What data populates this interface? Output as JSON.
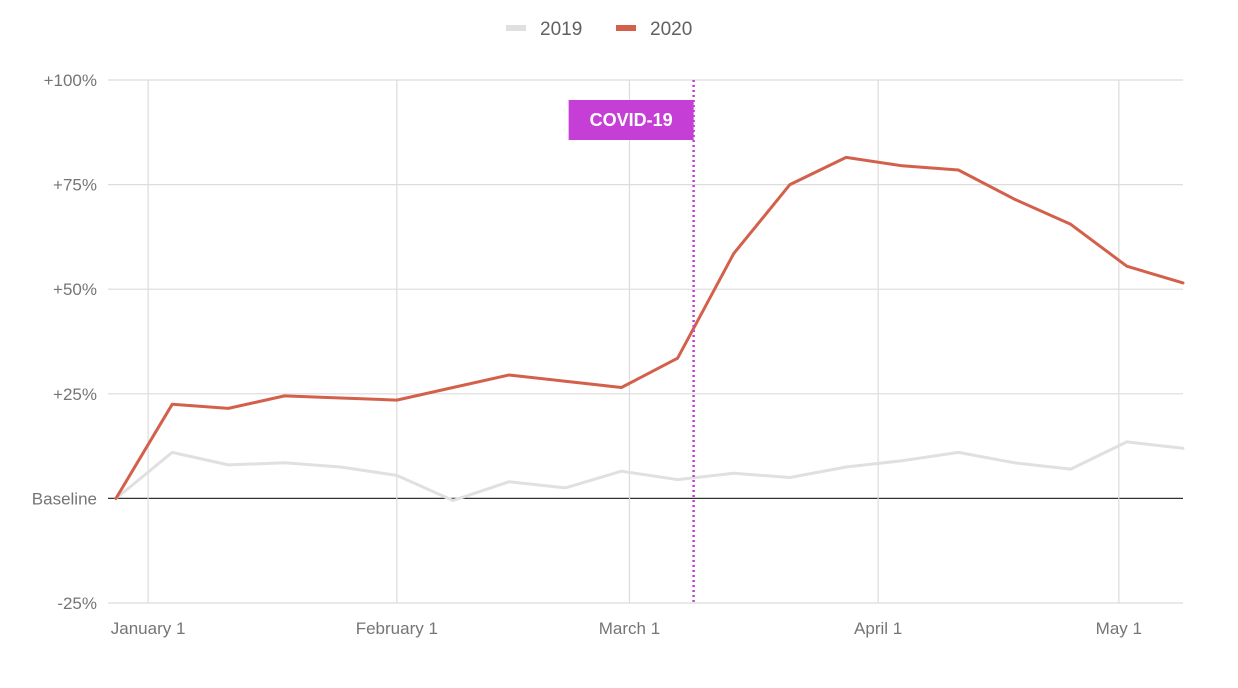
{
  "chart_data": {
    "type": "line",
    "title": "",
    "xlabel": "",
    "ylabel": "",
    "x_tick_labels": [
      "January 1",
      "February 1",
      "March 1",
      "April 1",
      "May 1"
    ],
    "y_tick_labels": [
      "+100%",
      "+75%",
      "+50%",
      "+25%",
      "Baseline",
      "-25%"
    ],
    "y_tick_values": [
      100,
      75,
      50,
      25,
      0,
      -25
    ],
    "ylim": [
      -25,
      100
    ],
    "xlim": [
      "2019-12-27",
      "2020-05-09"
    ],
    "grid": true,
    "legend_position": "top-center",
    "x": [
      "2019-12-28",
      "2020-01-04",
      "2020-01-11",
      "2020-01-18",
      "2020-01-25",
      "2020-02-01",
      "2020-02-08",
      "2020-02-15",
      "2020-02-22",
      "2020-02-29",
      "2020-03-07",
      "2020-03-14",
      "2020-03-21",
      "2020-03-28",
      "2020-04-04",
      "2020-04-11",
      "2020-04-18",
      "2020-04-25",
      "2020-05-02",
      "2020-05-09"
    ],
    "series": [
      {
        "name": "2019",
        "color": "#e0e0e0",
        "values": [
          0,
          11,
          8,
          8.5,
          7.5,
          5.5,
          -0.5,
          4,
          2.5,
          6.5,
          4.5,
          6,
          5,
          7.5,
          9,
          11,
          8.5,
          7,
          13.5,
          12
        ]
      },
      {
        "name": "2020",
        "color": "#d3604b",
        "values": [
          0,
          22.5,
          21.5,
          24.5,
          24,
          23.5,
          26.5,
          29.5,
          28,
          26.5,
          33.5,
          58.5,
          75,
          81.5,
          79.5,
          78.5,
          71.5,
          65.5,
          55.5,
          51.5
        ]
      }
    ],
    "annotations": [
      {
        "text": "COVID-19",
        "x": "2020-03-09",
        "color": "#c53fd6",
        "line_style": "dotted"
      }
    ]
  }
}
